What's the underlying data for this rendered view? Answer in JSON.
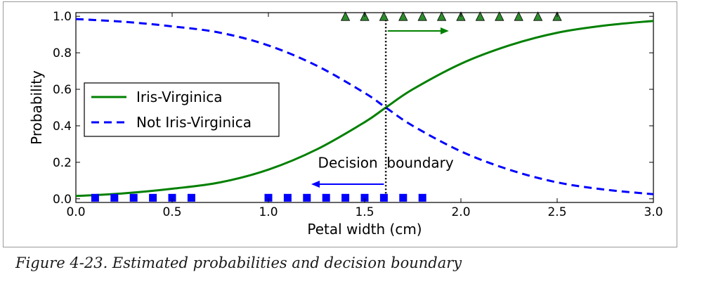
{
  "caption": "Figure 4-23. Estimated probabilities and decision boundary",
  "chart_data": {
    "type": "line",
    "title": "",
    "xlabel": "Petal width (cm)",
    "ylabel": "Probability",
    "xlim": [
      0.0,
      3.0
    ],
    "ylim": [
      -0.02,
      1.02
    ],
    "x_ticks": [
      "0.0",
      "0.5",
      "1.0",
      "1.5",
      "2.0",
      "2.5",
      "3.0"
    ],
    "y_ticks": [
      "0.0",
      "0.2",
      "0.4",
      "0.6",
      "0.8",
      "1.0"
    ],
    "grid": false,
    "legend_position": "center-left",
    "series": [
      {
        "name": "Iris-Virginica",
        "style": "solid",
        "color": "#008000",
        "x": [
          0.0,
          0.25,
          0.5,
          0.75,
          1.0,
          1.25,
          1.5,
          1.61,
          1.75,
          2.0,
          2.25,
          2.5,
          2.75,
          3.0
        ],
        "y": [
          0.015,
          0.03,
          0.055,
          0.09,
          0.16,
          0.27,
          0.42,
          0.5,
          0.6,
          0.74,
          0.84,
          0.91,
          0.95,
          0.975
        ]
      },
      {
        "name": "Not Iris-Virginica",
        "style": "dashed",
        "color": "#0000ff",
        "x": [
          0.0,
          0.25,
          0.5,
          0.75,
          1.0,
          1.25,
          1.5,
          1.61,
          1.75,
          2.0,
          2.25,
          2.5,
          2.75,
          3.0
        ],
        "y": [
          0.985,
          0.97,
          0.945,
          0.91,
          0.84,
          0.73,
          0.58,
          0.5,
          0.4,
          0.26,
          0.16,
          0.09,
          0.05,
          0.025
        ]
      }
    ],
    "scatter": [
      {
        "marker": "triangle",
        "color": "#2e8b2e",
        "x": [
          1.4,
          1.5,
          1.6,
          1.7,
          1.8,
          1.9,
          2.0,
          2.1,
          2.2,
          2.3,
          2.4,
          2.5
        ],
        "y": [
          1.0,
          1.0,
          1.0,
          1.0,
          1.0,
          1.0,
          1.0,
          1.0,
          1.0,
          1.0,
          1.0,
          1.0
        ]
      },
      {
        "marker": "square",
        "color": "#0000ff",
        "x": [
          0.1,
          0.2,
          0.3,
          0.4,
          0.5,
          0.6,
          1.0,
          1.1,
          1.2,
          1.3,
          1.4,
          1.5,
          1.6,
          1.7,
          1.8
        ],
        "y": [
          0.0,
          0.0,
          0.0,
          0.0,
          0.0,
          0.0,
          0.0,
          0.0,
          0.0,
          0.0,
          0.0,
          0.0,
          0.0,
          0.0,
          0.0
        ]
      }
    ],
    "decision_boundary": {
      "x": 1.61
    },
    "annotations": [
      {
        "text": "Decision  boundary",
        "x": 1.61,
        "y": 0.17
      }
    ],
    "arrows": [
      {
        "color": "#008000",
        "x_from": 1.62,
        "x_to": 1.93,
        "y": 0.92
      },
      {
        "color": "#0000ff",
        "x_from": 1.6,
        "x_to": 1.23,
        "y": 0.08
      }
    ]
  }
}
